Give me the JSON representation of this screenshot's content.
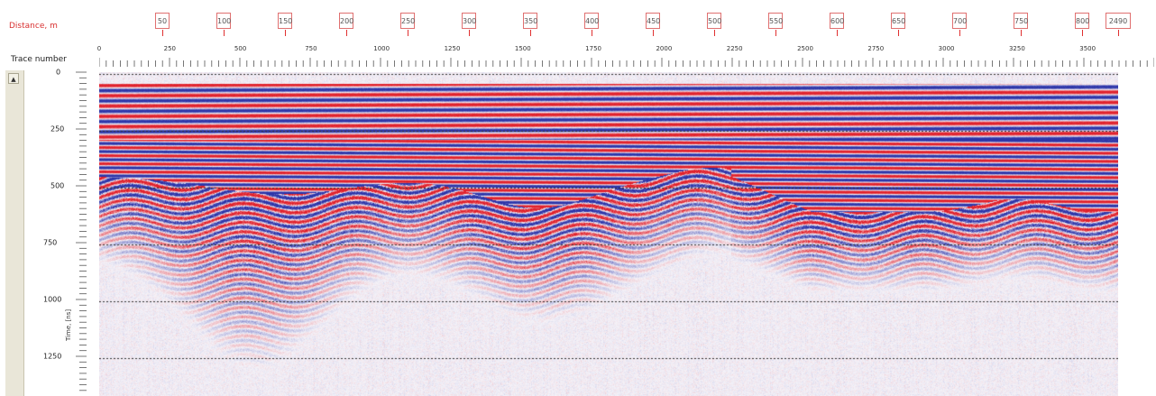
{
  "header": {
    "distance_label": "Distance, m",
    "trace_label": "Trace number"
  },
  "distance_markers": [
    "50",
    "100",
    "150",
    "200",
    "250",
    "300",
    "350",
    "400",
    "450",
    "500",
    "550",
    "600",
    "650",
    "700",
    "750",
    "800",
    "2490"
  ],
  "trace_ticks": [
    "0",
    "250",
    "500",
    "750",
    "1000",
    "1250",
    "1500",
    "1750",
    "2000",
    "2250",
    "2500",
    "2750",
    "3000",
    "3250",
    "3500"
  ],
  "time_axis": {
    "ticks": [
      "0",
      "250",
      "500",
      "750",
      "1000",
      "1250"
    ],
    "unit": "Time, [ns]"
  },
  "scrollbar": {
    "up_arrow": "▲"
  },
  "colors": {
    "positive": "#e0202a",
    "negative": "#2a3aa8",
    "background": "#f4f2f8",
    "accent": "#d83030"
  }
}
